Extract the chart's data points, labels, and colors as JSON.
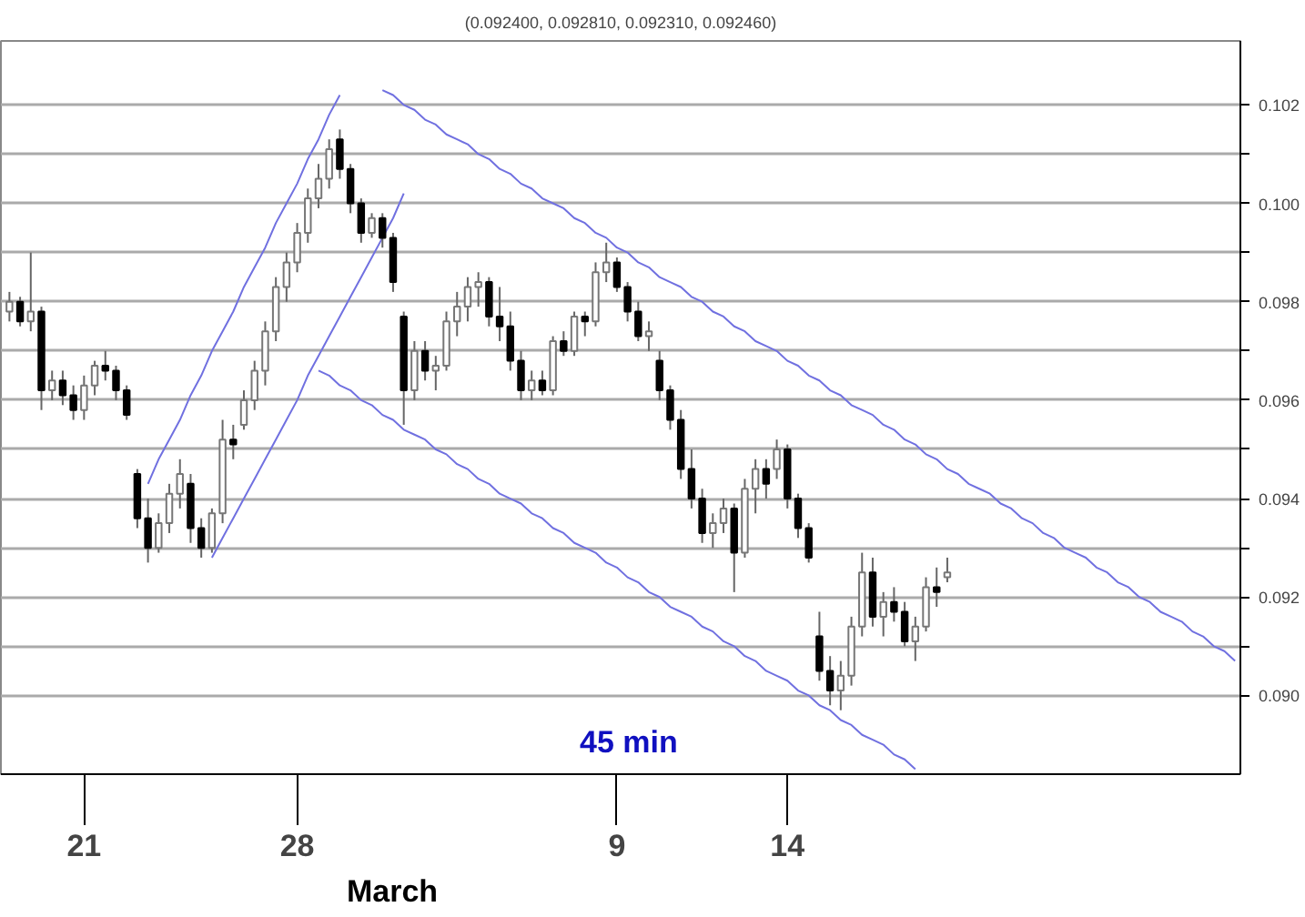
{
  "chart_data": {
    "type": "candlestick",
    "title": "(0.092400, 0.092810, 0.092310, 0.092460)",
    "categories": [
      null,
      null,
      null,
      null,
      null,
      null,
      null,
      "21",
      null,
      null,
      null,
      null,
      null,
      null,
      null,
      null,
      null,
      null,
      null,
      null,
      null,
      null,
      null,
      null,
      null,
      null,
      null,
      "28",
      null,
      null,
      null,
      null,
      null,
      null,
      null,
      null,
      null,
      null,
      null,
      null,
      null,
      null,
      null,
      null,
      null,
      null,
      null,
      null,
      null,
      null,
      null,
      null,
      null,
      null,
      null,
      null,
      null,
      "9",
      null,
      null,
      null,
      null,
      null,
      null,
      null,
      null,
      null,
      null,
      null,
      null,
      null,
      null,
      null,
      "14",
      null,
      null,
      null,
      null,
      null,
      null,
      null,
      null,
      null,
      null,
      null,
      null,
      null,
      null,
      null,
      null,
      null,
      null,
      null,
      null,
      null,
      null,
      null,
      null,
      null,
      null,
      null,
      null,
      null,
      null,
      null,
      null,
      null,
      null,
      null,
      null,
      null,
      null,
      null,
      null,
      null,
      null
    ],
    "ohlc": [
      [
        0.0978,
        0.0982,
        0.0976,
        0.098
      ],
      [
        0.098,
        0.0981,
        0.0975,
        0.0976
      ],
      [
        0.0976,
        0.099,
        0.0974,
        0.0978
      ],
      [
        0.0978,
        0.0979,
        0.0958,
        0.0962
      ],
      [
        0.0962,
        0.0966,
        0.096,
        0.0964
      ],
      [
        0.0964,
        0.0966,
        0.0959,
        0.0961
      ],
      [
        0.0961,
        0.0963,
        0.0956,
        0.0958
      ],
      [
        0.0958,
        0.0965,
        0.0956,
        0.0963
      ],
      [
        0.0963,
        0.0968,
        0.0961,
        0.0967
      ],
      [
        0.0967,
        0.097,
        0.0964,
        0.0966
      ],
      [
        0.0966,
        0.0967,
        0.096,
        0.0962
      ],
      [
        0.0962,
        0.0963,
        0.0956,
        0.0957
      ],
      [
        0.0945,
        0.0946,
        0.0934,
        0.0936
      ],
      [
        0.0936,
        0.094,
        0.0927,
        0.093
      ],
      [
        0.093,
        0.0937,
        0.0929,
        0.0935
      ],
      [
        0.0935,
        0.0943,
        0.0933,
        0.0941
      ],
      [
        0.0941,
        0.0948,
        0.0938,
        0.0945
      ],
      [
        0.0943,
        0.0945,
        0.0931,
        0.0934
      ],
      [
        0.0934,
        0.0936,
        0.0928,
        0.093
      ],
      [
        0.093,
        0.0938,
        0.0929,
        0.0937
      ],
      [
        0.0937,
        0.0956,
        0.0935,
        0.0952
      ],
      [
        0.0952,
        0.0955,
        0.0948,
        0.0951
      ],
      [
        0.0955,
        0.0962,
        0.0954,
        0.096
      ],
      [
        0.096,
        0.0968,
        0.0958,
        0.0966
      ],
      [
        0.0966,
        0.0976,
        0.0963,
        0.0974
      ],
      [
        0.0974,
        0.0985,
        0.0972,
        0.0983
      ],
      [
        0.0983,
        0.099,
        0.098,
        0.0988
      ],
      [
        0.0988,
        0.0996,
        0.0986,
        0.0994
      ],
      [
        0.0994,
        0.1003,
        0.0992,
        0.1001
      ],
      [
        0.1001,
        0.1008,
        0.0999,
        0.1005
      ],
      [
        0.1005,
        0.1013,
        0.1003,
        0.1011
      ],
      [
        0.1013,
        0.1015,
        0.1005,
        0.1007
      ],
      [
        0.1007,
        0.1008,
        0.0998,
        0.1
      ],
      [
        0.1,
        0.1001,
        0.0992,
        0.0994
      ],
      [
        0.0994,
        0.0998,
        0.0993,
        0.0997
      ],
      [
        0.0997,
        0.0998,
        0.0991,
        0.0993
      ],
      [
        0.0993,
        0.0994,
        0.0982,
        0.0984
      ],
      [
        0.0977,
        0.0978,
        0.0955,
        0.0962
      ],
      [
        0.0962,
        0.0972,
        0.096,
        0.097
      ],
      [
        0.097,
        0.0972,
        0.0964,
        0.0966
      ],
      [
        0.0966,
        0.0969,
        0.0962,
        0.0967
      ],
      [
        0.0967,
        0.0978,
        0.0966,
        0.0976
      ],
      [
        0.0976,
        0.0982,
        0.0973,
        0.0979
      ],
      [
        0.0979,
        0.0985,
        0.0976,
        0.0983
      ],
      [
        0.0983,
        0.0986,
        0.0979,
        0.0984
      ],
      [
        0.0984,
        0.0985,
        0.0975,
        0.0977
      ],
      [
        0.0977,
        0.0983,
        0.0972,
        0.0975
      ],
      [
        0.0975,
        0.0978,
        0.0966,
        0.0968
      ],
      [
        0.0968,
        0.097,
        0.096,
        0.0962
      ],
      [
        0.0962,
        0.0966,
        0.096,
        0.0964
      ],
      [
        0.0964,
        0.0966,
        0.0961,
        0.0962
      ],
      [
        0.0962,
        0.0973,
        0.0961,
        0.0972
      ],
      [
        0.0972,
        0.0974,
        0.0969,
        0.097
      ],
      [
        0.097,
        0.0978,
        0.0969,
        0.0977
      ],
      [
        0.0977,
        0.0978,
        0.0973,
        0.0976
      ],
      [
        0.0976,
        0.0988,
        0.0975,
        0.0986
      ],
      [
        0.0986,
        0.0992,
        0.0984,
        0.0988
      ],
      [
        0.0988,
        0.0989,
        0.0982,
        0.0983
      ],
      [
        0.0983,
        0.0984,
        0.0976,
        0.0978
      ],
      [
        0.0978,
        0.098,
        0.0972,
        0.0973
      ],
      [
        0.0973,
        0.0976,
        0.097,
        0.0974
      ],
      [
        0.0968,
        0.097,
        0.096,
        0.0962
      ],
      [
        0.0962,
        0.0963,
        0.0954,
        0.0956
      ],
      [
        0.0956,
        0.0958,
        0.0944,
        0.0946
      ],
      [
        0.0946,
        0.095,
        0.0938,
        0.094
      ],
      [
        0.094,
        0.0942,
        0.0931,
        0.0933
      ],
      [
        0.0933,
        0.0937,
        0.093,
        0.0935
      ],
      [
        0.0935,
        0.094,
        0.0933,
        0.0938
      ],
      [
        0.0938,
        0.0939,
        0.0921,
        0.0929
      ],
      [
        0.0929,
        0.0944,
        0.0928,
        0.0942
      ],
      [
        0.0942,
        0.0948,
        0.0937,
        0.0946
      ],
      [
        0.0946,
        0.0948,
        0.094,
        0.0943
      ],
      [
        0.0946,
        0.0952,
        0.0944,
        0.095
      ],
      [
        0.095,
        0.0951,
        0.0938,
        0.094
      ],
      [
        0.094,
        0.0941,
        0.0932,
        0.0934
      ],
      [
        0.0934,
        0.0935,
        0.0927,
        0.0928
      ],
      [
        0.0912,
        0.0917,
        0.0903,
        0.0905
      ],
      [
        0.0905,
        0.0908,
        0.0898,
        0.0901
      ],
      [
        0.0901,
        0.0907,
        0.0897,
        0.0904
      ],
      [
        0.0904,
        0.0916,
        0.0902,
        0.0914
      ],
      [
        0.0914,
        0.0929,
        0.0912,
        0.0925
      ],
      [
        0.0925,
        0.0928,
        0.0914,
        0.0916
      ],
      [
        0.0916,
        0.0921,
        0.0912,
        0.0919
      ],
      [
        0.0919,
        0.0922,
        0.0915,
        0.0917
      ],
      [
        0.0917,
        0.0919,
        0.091,
        0.0911
      ],
      [
        0.0911,
        0.0916,
        0.0907,
        0.0914
      ],
      [
        0.0914,
        0.0924,
        0.0913,
        0.0922
      ],
      [
        0.0922,
        0.0926,
        0.0918,
        0.0921
      ],
      [
        0.0924,
        0.0928,
        0.0923,
        0.0925
      ],
      null,
      null,
      null,
      null,
      null,
      null,
      null,
      null,
      null,
      null,
      null,
      null,
      null,
      null,
      null,
      null,
      null,
      null,
      null,
      null,
      null,
      null,
      null,
      null,
      null,
      null,
      null
    ],
    "series": [
      {
        "type": "line",
        "color": "#7070e0",
        "values": [
          null,
          null,
          null,
          null,
          null,
          null,
          null,
          null,
          null,
          null,
          null,
          null,
          null,
          0.0943,
          0.0948,
          0.0952,
          0.0956,
          0.0961,
          0.0965,
          0.097,
          0.0974,
          0.0978,
          0.0983,
          0.0987,
          0.0991,
          0.0996,
          0.1,
          0.1004,
          0.1009,
          0.1013,
          0.1018,
          0.1022,
          null,
          null,
          null,
          null,
          null,
          null,
          null,
          null,
          null,
          null,
          null,
          null,
          null,
          null,
          null,
          null,
          null,
          null,
          null,
          null,
          null,
          null,
          null,
          null,
          null,
          null,
          null,
          null,
          null,
          null,
          null,
          null,
          null,
          null,
          null,
          null,
          null,
          null,
          null,
          null,
          null,
          null,
          null,
          null,
          null,
          null,
          null,
          null,
          null,
          null,
          null,
          null,
          null,
          null,
          null,
          null,
          null,
          null,
          null,
          null,
          null,
          null,
          null,
          null,
          null,
          null,
          null,
          null,
          null,
          null,
          null,
          null,
          null,
          null,
          null,
          null,
          null,
          null,
          null,
          null,
          null,
          null,
          null,
          null
        ]
      },
      {
        "type": "line",
        "color": "#7070e0",
        "values": [
          null,
          null,
          null,
          null,
          null,
          null,
          null,
          null,
          null,
          null,
          null,
          null,
          null,
          null,
          null,
          null,
          null,
          null,
          null,
          0.0928,
          0.0932,
          0.0936,
          0.094,
          0.0944,
          0.0948,
          0.0952,
          0.0956,
          0.096,
          0.0965,
          0.0969,
          0.0973,
          0.0977,
          0.0981,
          0.0985,
          0.0989,
          0.0993,
          0.0997,
          0.1002,
          null,
          null,
          null,
          null,
          null,
          null,
          null,
          null,
          null,
          null,
          null,
          null,
          null,
          null,
          null,
          null,
          null,
          null,
          null,
          null,
          null,
          null,
          null,
          null,
          null,
          null,
          null,
          null,
          null,
          null,
          null,
          null,
          null,
          null,
          null,
          null,
          null,
          null,
          null,
          null,
          null,
          null,
          null,
          null,
          null,
          null,
          null,
          null,
          null,
          null,
          null,
          null,
          null,
          null,
          null,
          null,
          null,
          null,
          null,
          null,
          null,
          null,
          null,
          null,
          null,
          null,
          null,
          null,
          null,
          null,
          null,
          null,
          null,
          null,
          null,
          null,
          null,
          null
        ]
      },
      {
        "type": "line",
        "color": "#7070e0",
        "values": [
          null,
          null,
          null,
          null,
          null,
          null,
          null,
          null,
          null,
          null,
          null,
          null,
          null,
          null,
          null,
          null,
          null,
          null,
          null,
          null,
          null,
          null,
          null,
          null,
          null,
          null,
          null,
          null,
          null,
          null,
          null,
          null,
          null,
          null,
          null,
          0.1023,
          0.1022,
          0.102,
          0.1019,
          0.1017,
          0.1016,
          0.1014,
          0.1013,
          0.1012,
          0.101,
          0.1009,
          0.1007,
          0.1006,
          0.1004,
          0.1003,
          0.1001,
          0.1,
          0.0999,
          0.0997,
          0.0996,
          0.0994,
          0.0993,
          0.0991,
          0.099,
          0.0988,
          0.0987,
          0.0985,
          0.0984,
          0.0983,
          0.0981,
          0.098,
          0.0978,
          0.0977,
          0.0975,
          0.0974,
          0.0972,
          0.0971,
          0.097,
          0.0968,
          0.0967,
          0.0965,
          0.0964,
          0.0962,
          0.0961,
          0.0959,
          0.0958,
          0.0957,
          0.0955,
          0.0954,
          0.0952,
          0.0951,
          0.0949,
          0.0948,
          0.0946,
          0.0945,
          0.0943,
          0.0942,
          0.0941,
          0.0939,
          0.0938,
          0.0936,
          0.0935,
          0.0933,
          0.0932,
          0.093,
          0.0929,
          0.0928,
          0.0926,
          0.0925,
          0.0923,
          0.0922,
          0.092,
          0.0919,
          0.0917,
          0.0916,
          0.0915,
          0.0913,
          0.0912,
          0.091,
          0.0909,
          0.0907
        ]
      },
      {
        "type": "line",
        "color": "#7070e0",
        "values": [
          null,
          null,
          null,
          null,
          null,
          null,
          null,
          null,
          null,
          null,
          null,
          null,
          null,
          null,
          null,
          null,
          null,
          null,
          null,
          null,
          null,
          null,
          null,
          null,
          null,
          null,
          null,
          null,
          null,
          0.0966,
          0.0965,
          0.0963,
          0.0962,
          0.096,
          0.0959,
          0.0957,
          0.0956,
          0.0954,
          0.0953,
          0.0952,
          0.095,
          0.0949,
          0.0947,
          0.0946,
          0.0944,
          0.0943,
          0.0941,
          0.094,
          0.0939,
          0.0937,
          0.0936,
          0.0934,
          0.0933,
          0.0931,
          0.093,
          0.0929,
          0.0927,
          0.0926,
          0.0924,
          0.0923,
          0.0921,
          0.092,
          0.0918,
          0.0917,
          0.0916,
          0.0914,
          0.0913,
          0.0911,
          0.091,
          0.0908,
          0.0907,
          0.0905,
          0.0904,
          0.0903,
          0.0901,
          0.09,
          0.0898,
          0.0897,
          0.0895,
          0.0894,
          0.0892,
          0.0891,
          0.089,
          0.0888,
          0.0887,
          0.0885,
          null,
          null,
          null,
          null,
          null,
          null,
          null,
          null,
          null,
          null,
          null,
          null,
          null,
          null,
          null,
          null,
          null,
          null,
          null,
          null,
          null,
          null,
          null,
          null,
          null,
          null,
          null,
          null,
          null,
          null
        ]
      }
    ],
    "ylim": [
      0.0884,
      0.1033
    ],
    "yticks": [
      {
        "value": 0.09,
        "label": "0.090"
      },
      {
        "value": 0.091,
        "label": null
      },
      {
        "value": 0.092,
        "label": "0.092"
      },
      {
        "value": 0.093,
        "label": null
      },
      {
        "value": 0.094,
        "label": "0.094"
      },
      {
        "value": 0.095,
        "label": null
      },
      {
        "value": 0.096,
        "label": "0.096"
      },
      {
        "value": 0.097,
        "label": null
      },
      {
        "value": 0.098,
        "label": "0.098"
      },
      {
        "value": 0.099,
        "label": null
      },
      {
        "value": 0.1,
        "label": "0.100"
      },
      {
        "value": 0.101,
        "label": null
      },
      {
        "value": 0.102,
        "label": "0.102"
      }
    ],
    "grid": "y",
    "annotations": [
      "45 min",
      "March"
    ]
  }
}
